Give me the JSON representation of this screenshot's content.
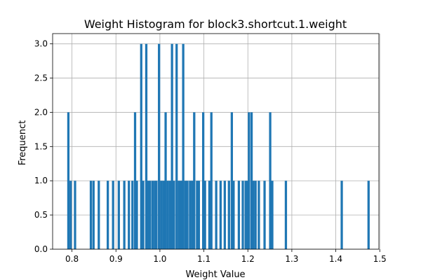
{
  "chart_data": {
    "type": "bar",
    "title": "Weight Histogram for block3.shortcut.1.weight",
    "xlabel": "Weight Value",
    "ylabel": "Frequenct",
    "xlim": [
      0.756,
      1.498
    ],
    "ylim": [
      0,
      3.15
    ],
    "x_ticks": [
      0.8,
      0.9,
      1.0,
      1.1,
      1.2,
      1.3,
      1.4,
      1.5
    ],
    "x_tick_labels": [
      "0.8",
      "0.9",
      "1.0",
      "1.1",
      "1.2",
      "1.3",
      "1.4",
      "1.5"
    ],
    "y_ticks": [
      0.0,
      0.5,
      1.0,
      1.5,
      2.0,
      2.5,
      3.0
    ],
    "y_tick_labels": [
      "0.0",
      "0.5",
      "1.0",
      "1.5",
      "2.0",
      "2.5",
      "3.0"
    ],
    "grid": true,
    "bar_color": "#1f77b4",
    "bin_width": 0.0052,
    "x": [
      0.7918,
      0.797,
      0.807,
      0.843,
      0.849,
      0.861,
      0.8815,
      0.8935,
      0.9065,
      0.919,
      0.9295,
      0.9375,
      0.9435,
      0.9475,
      0.9575,
      0.962,
      0.969,
      0.974,
      0.9775,
      0.9833,
      0.9885,
      0.992,
      0.998,
      1.003,
      1.008,
      1.013,
      1.018,
      1.023,
      1.0275,
      1.032,
      1.038,
      1.043,
      1.048,
      1.053,
      1.058,
      1.0625,
      1.0685,
      1.0735,
      1.078,
      1.0845,
      1.0885,
      1.0985,
      1.1025,
      1.1125,
      1.117,
      1.128,
      1.138,
      1.1475,
      1.157,
      1.1635,
      1.1675,
      1.1795,
      1.1885,
      1.195,
      1.199,
      1.2025,
      1.2085,
      1.2125,
      1.2175,
      1.225,
      1.238,
      1.2508,
      1.2555,
      1.2865,
      1.4135,
      1.4745
    ],
    "values": [
      2,
      1,
      1,
      1,
      1,
      1,
      1,
      1,
      1,
      1,
      1,
      1,
      2,
      1,
      3,
      1,
      3,
      1,
      1,
      1,
      1,
      1,
      3,
      1,
      1,
      2,
      1,
      1,
      3,
      1,
      3,
      1,
      1,
      3,
      1,
      1,
      1,
      1,
      2,
      1,
      1,
      2,
      1,
      1,
      2,
      1,
      1,
      1,
      1,
      2,
      1,
      1,
      1,
      1,
      1,
      2,
      2,
      1,
      1,
      1,
      1,
      2,
      1,
      1,
      1,
      1
    ]
  }
}
